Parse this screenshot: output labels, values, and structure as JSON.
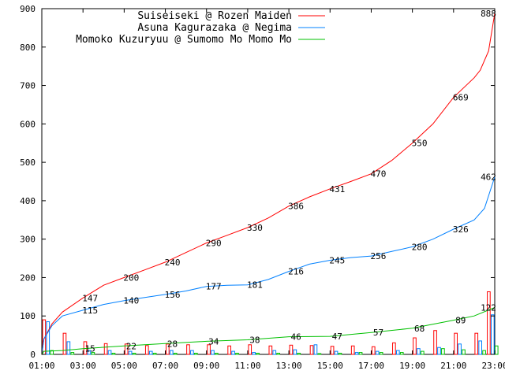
{
  "chart_data": {
    "type": "line",
    "xlim": [
      1,
      23
    ],
    "ylim": [
      0,
      900
    ],
    "yticks": [
      0,
      100,
      200,
      300,
      400,
      500,
      600,
      700,
      800,
      900
    ],
    "xticks": [
      {
        "t": 1,
        "label": "01:00"
      },
      {
        "t": 3,
        "label": "03:00"
      },
      {
        "t": 5,
        "label": "05:00"
      },
      {
        "t": 7,
        "label": "07:00"
      },
      {
        "t": 9,
        "label": "09:00"
      },
      {
        "t": 11,
        "label": "11:00"
      },
      {
        "t": 13,
        "label": "13:00"
      },
      {
        "t": 15,
        "label": "15:00"
      },
      {
        "t": 17,
        "label": "17:00"
      },
      {
        "t": 19,
        "label": "19:00"
      },
      {
        "t": 21,
        "label": "21:00"
      },
      {
        "t": 23,
        "label": "23:00"
      }
    ],
    "legend_position": "top",
    "series": [
      {
        "name": "Suiseiseki @ Rozen Maiden",
        "color": "#ff0000",
        "cumulative": [
          [
            1,
            0
          ],
          [
            1.1,
            40
          ],
          [
            1.5,
            80
          ],
          [
            2,
            110
          ],
          [
            3,
            147
          ],
          [
            4,
            180
          ],
          [
            5,
            200
          ],
          [
            6,
            220
          ],
          [
            7,
            240
          ],
          [
            8,
            265
          ],
          [
            9,
            290
          ],
          [
            10,
            310
          ],
          [
            11,
            330
          ],
          [
            12,
            355
          ],
          [
            13,
            386
          ],
          [
            14,
            410
          ],
          [
            15,
            431
          ],
          [
            16,
            450
          ],
          [
            17,
            470
          ],
          [
            18,
            505
          ],
          [
            19,
            550
          ],
          [
            20,
            600
          ],
          [
            21,
            669
          ],
          [
            22,
            720
          ],
          [
            22.3,
            740
          ],
          [
            22.7,
            790
          ],
          [
            23,
            888
          ]
        ],
        "labels": [
          [
            3,
            147
          ],
          [
            5,
            200
          ],
          [
            7,
            240
          ],
          [
            9,
            290
          ],
          [
            11,
            330
          ],
          [
            13,
            386
          ],
          [
            15,
            431
          ],
          [
            17,
            470
          ],
          [
            19,
            550
          ],
          [
            21,
            669
          ],
          [
            23,
            888
          ]
        ],
        "bars": [
          [
            1,
            90
          ],
          [
            2,
            55
          ],
          [
            3,
            33
          ],
          [
            4,
            28
          ],
          [
            5,
            27
          ],
          [
            6,
            23
          ],
          [
            7,
            27
          ],
          [
            8,
            25
          ],
          [
            9,
            25
          ],
          [
            10,
            22
          ],
          [
            11,
            25
          ],
          [
            12,
            22
          ],
          [
            13,
            24
          ],
          [
            14,
            23
          ],
          [
            15,
            21
          ],
          [
            16,
            22
          ],
          [
            17,
            20
          ],
          [
            18,
            30
          ],
          [
            19,
            43
          ],
          [
            20,
            62
          ],
          [
            21,
            55
          ],
          [
            22,
            55
          ],
          [
            22.6,
            163
          ]
        ]
      },
      {
        "name": "Asuna Kagurazaka @ Negima",
        "color": "#0080ff",
        "cumulative": [
          [
            1,
            0
          ],
          [
            1.1,
            40
          ],
          [
            1.5,
            75
          ],
          [
            2,
            100
          ],
          [
            3,
            115
          ],
          [
            4,
            130
          ],
          [
            5,
            140
          ],
          [
            6,
            148
          ],
          [
            7,
            156
          ],
          [
            8,
            165
          ],
          [
            9,
            177
          ],
          [
            10,
            180
          ],
          [
            11,
            181
          ],
          [
            12,
            195
          ],
          [
            13,
            216
          ],
          [
            14,
            235
          ],
          [
            15,
            245
          ],
          [
            16,
            252
          ],
          [
            17,
            256
          ],
          [
            18,
            268
          ],
          [
            19,
            280
          ],
          [
            20,
            300
          ],
          [
            21,
            326
          ],
          [
            22,
            350
          ],
          [
            22.5,
            380
          ],
          [
            23,
            462
          ]
        ],
        "labels": [
          [
            3,
            115
          ],
          [
            5,
            140
          ],
          [
            7,
            156
          ],
          [
            9,
            177
          ],
          [
            11,
            181
          ],
          [
            13,
            216
          ],
          [
            15,
            245
          ],
          [
            17,
            256
          ],
          [
            19,
            280
          ],
          [
            21,
            326
          ],
          [
            23,
            462
          ]
        ],
        "bars": [
          [
            1,
            85
          ],
          [
            2,
            33
          ],
          [
            3,
            10
          ],
          [
            4,
            10
          ],
          [
            5,
            8
          ],
          [
            6,
            8
          ],
          [
            7,
            10
          ],
          [
            8,
            10
          ],
          [
            9,
            10
          ],
          [
            10,
            8
          ],
          [
            11,
            5
          ],
          [
            12,
            10
          ],
          [
            13,
            12
          ],
          [
            14,
            25
          ],
          [
            15,
            8
          ],
          [
            16,
            5
          ],
          [
            17,
            8
          ],
          [
            18,
            10
          ],
          [
            19,
            15
          ],
          [
            20,
            18
          ],
          [
            21,
            27
          ],
          [
            22,
            35
          ],
          [
            22.6,
            103
          ]
        ]
      },
      {
        "name": "Momoko Kuzuryuu @ Sumomo Mo Momo Mo",
        "color": "#00c000",
        "cumulative": [
          [
            1,
            0
          ],
          [
            1.1,
            8
          ],
          [
            2,
            10
          ],
          [
            3,
            15
          ],
          [
            5,
            22
          ],
          [
            7,
            28
          ],
          [
            9,
            34
          ],
          [
            11,
            38
          ],
          [
            13,
            46
          ],
          [
            15,
            47
          ],
          [
            17,
            57
          ],
          [
            19,
            68
          ],
          [
            21,
            89
          ],
          [
            22,
            100
          ],
          [
            23,
            122
          ]
        ],
        "labels": [
          [
            3,
            15
          ],
          [
            5,
            22
          ],
          [
            7,
            28
          ],
          [
            9,
            34
          ],
          [
            11,
            38
          ],
          [
            13,
            46
          ],
          [
            15,
            47
          ],
          [
            17,
            57
          ],
          [
            19,
            68
          ],
          [
            21,
            89
          ],
          [
            23,
            122
          ]
        ],
        "bars": [
          [
            1,
            10
          ],
          [
            2,
            5
          ],
          [
            3,
            5
          ],
          [
            4,
            3
          ],
          [
            5,
            3
          ],
          [
            6,
            3
          ],
          [
            7,
            3
          ],
          [
            8,
            3
          ],
          [
            9,
            3
          ],
          [
            10,
            3
          ],
          [
            11,
            3
          ],
          [
            12,
            3
          ],
          [
            13,
            3
          ],
          [
            14,
            2
          ],
          [
            15,
            3
          ],
          [
            16,
            5
          ],
          [
            17,
            5
          ],
          [
            18,
            5
          ],
          [
            19,
            8
          ],
          [
            20,
            15
          ],
          [
            21,
            12
          ],
          [
            22,
            10
          ],
          [
            22.6,
            22
          ]
        ]
      }
    ]
  }
}
